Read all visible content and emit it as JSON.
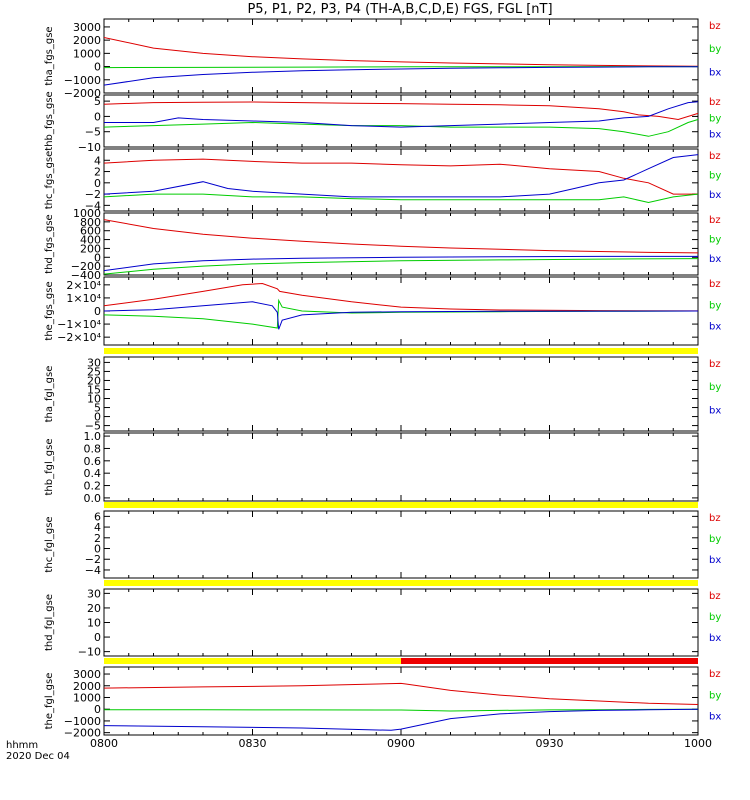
{
  "title": "P5, P1, P2, P3, P4 (TH-A,B,C,D,E) FGS, FGL [nT]",
  "colors": {
    "bz": "#dd0000",
    "by": "#00cc00",
    "bx": "#0000cc",
    "bar_yellow": "#ffff00",
    "bar_red": "#ee0000"
  },
  "footer": {
    "axis_label": "hhmm",
    "date": "2020 Dec 04"
  },
  "chart_data": {
    "type": "line",
    "x_ticks": [
      "0800",
      "0830",
      "0900",
      "0930",
      "1000"
    ],
    "x_range": [
      "08:00",
      "10:00"
    ],
    "panels": [
      {
        "id": "tha_fgs_gse",
        "ylabel": "tha_fgs_gse",
        "ylim": [
          -2000,
          3600
        ],
        "yticks": [
          {
            "v": 3000,
            "t": "3000"
          },
          {
            "v": 2000,
            "t": "2000"
          },
          {
            "v": 1000,
            "t": "1000"
          },
          {
            "v": 0,
            "t": "0"
          },
          {
            "v": -1000,
            "t": "−1000"
          },
          {
            "v": -2000,
            "t": "−2000"
          }
        ],
        "legend": [
          "bz",
          "by",
          "bx"
        ],
        "series": [
          {
            "name": "bz",
            "x": [
              0,
              10,
              20,
              30,
              40,
              50,
              60,
              70,
              80,
              90,
              100,
              110,
              120
            ],
            "y": [
              2200,
              1400,
              1000,
              750,
              580,
              450,
              350,
              270,
              200,
              140,
              90,
              50,
              30
            ]
          },
          {
            "name": "by",
            "x": [
              0,
              20,
              40,
              60,
              80,
              100,
              120
            ],
            "y": [
              -80,
              -60,
              -40,
              -20,
              -10,
              0,
              0
            ]
          },
          {
            "name": "bx",
            "x": [
              0,
              10,
              20,
              30,
              40,
              50,
              60,
              70,
              80,
              90,
              100,
              110,
              120
            ],
            "y": [
              -1400,
              -850,
              -600,
              -430,
              -320,
              -240,
              -180,
              -130,
              -90,
              -60,
              -40,
              -20,
              -10
            ]
          }
        ]
      },
      {
        "id": "thb_fgs_gse",
        "ylabel": "thb_fgs_gse",
        "ylim": [
          -10,
          7
        ],
        "yticks": [
          {
            "v": 5,
            "t": "5"
          },
          {
            "v": 0,
            "t": "0"
          },
          {
            "v": -5,
            "t": "−5"
          },
          {
            "v": -10,
            "t": "−10"
          }
        ],
        "legend": [
          "bz",
          "by",
          "bx"
        ],
        "series": [
          {
            "name": "bz",
            "x": [
              0,
              10,
              20,
              30,
              40,
              50,
              60,
              70,
              80,
              90,
              100,
              105,
              108,
              112,
              116,
              120
            ],
            "y": [
              4.0,
              4.5,
              4.6,
              4.7,
              4.5,
              4.3,
              4.2,
              4.0,
              3.8,
              3.5,
              2.5,
              1.5,
              0.5,
              0.0,
              -1.0,
              1.0
            ]
          },
          {
            "name": "by",
            "x": [
              0,
              10,
              20,
              30,
              40,
              50,
              60,
              70,
              80,
              90,
              100,
              105,
              110,
              114,
              118,
              120
            ],
            "y": [
              -3.5,
              -3.0,
              -2.5,
              -2.0,
              -2.5,
              -3.0,
              -3.0,
              -3.5,
              -3.5,
              -3.5,
              -4.0,
              -5.0,
              -6.5,
              -5.0,
              -2.0,
              -1.0
            ]
          },
          {
            "name": "bx",
            "x": [
              0,
              10,
              15,
              20,
              30,
              40,
              50,
              60,
              70,
              80,
              90,
              100,
              105,
              110,
              114,
              118,
              120
            ],
            "y": [
              -2.0,
              -2.0,
              -0.5,
              -1.0,
              -1.5,
              -2.0,
              -3.0,
              -3.5,
              -3.0,
              -2.5,
              -2.0,
              -1.5,
              -0.5,
              0.0,
              2.5,
              4.5,
              4.8
            ]
          }
        ]
      },
      {
        "id": "thc_fgs_gse",
        "ylabel": "thc_fgs_gse",
        "ylim": [
          -5,
          6
        ],
        "yticks": [
          {
            "v": 4,
            "t": "4"
          },
          {
            "v": 2,
            "t": "2"
          },
          {
            "v": 0,
            "t": "0"
          },
          {
            "v": -2,
            "t": "−2"
          },
          {
            "v": -4,
            "t": "−4"
          }
        ],
        "legend": [
          "bz",
          "by",
          "bx"
        ],
        "series": [
          {
            "name": "bz",
            "x": [
              0,
              10,
              20,
              30,
              40,
              50,
              60,
              70,
              80,
              90,
              100,
              105,
              110,
              115,
              120
            ],
            "y": [
              3.5,
              4.0,
              4.2,
              3.8,
              3.5,
              3.5,
              3.2,
              3.0,
              3.3,
              2.5,
              2.0,
              0.8,
              0.0,
              -2.0,
              -2.0
            ]
          },
          {
            "name": "by",
            "x": [
              0,
              10,
              20,
              30,
              40,
              50,
              60,
              70,
              80,
              90,
              100,
              105,
              110,
              115,
              120
            ],
            "y": [
              -2.5,
              -2.0,
              -2.0,
              -2.5,
              -2.5,
              -2.8,
              -3.0,
              -3.0,
              -3.0,
              -3.0,
              -3.0,
              -2.5,
              -3.5,
              -2.5,
              -2.0
            ]
          },
          {
            "name": "bx",
            "x": [
              0,
              10,
              20,
              25,
              30,
              40,
              50,
              60,
              70,
              80,
              90,
              95,
              100,
              105,
              110,
              115,
              120
            ],
            "y": [
              -2.0,
              -1.5,
              0.2,
              -1.0,
              -1.5,
              -2.0,
              -2.5,
              -2.5,
              -2.5,
              -2.5,
              -2.0,
              -1.0,
              0.0,
              0.5,
              2.5,
              4.5,
              5.0
            ]
          }
        ]
      },
      {
        "id": "thd_fgs_gse",
        "ylabel": "thd_fgs_gse",
        "ylim": [
          -400,
          1000
        ],
        "yticks": [
          {
            "v": 1000,
            "t": "1000"
          },
          {
            "v": 800,
            "t": "800"
          },
          {
            "v": 600,
            "t": "600"
          },
          {
            "v": 400,
            "t": "400"
          },
          {
            "v": 200,
            "t": "200"
          },
          {
            "v": 0,
            "t": "0"
          },
          {
            "v": -200,
            "t": "−200"
          },
          {
            "v": -400,
            "t": "−400"
          }
        ],
        "legend": [
          "bz",
          "by",
          "bx"
        ],
        "series": [
          {
            "name": "bz",
            "x": [
              0,
              10,
              20,
              30,
              40,
              50,
              60,
              70,
              80,
              90,
              100,
              110,
              120
            ],
            "y": [
              850,
              650,
              520,
              430,
              360,
              300,
              250,
              210,
              180,
              150,
              130,
              110,
              100
            ]
          },
          {
            "name": "by",
            "x": [
              0,
              10,
              20,
              30,
              40,
              60,
              80,
              100,
              120
            ],
            "y": [
              -380,
              -270,
              -200,
              -150,
              -120,
              -80,
              -60,
              -40,
              -30
            ]
          },
          {
            "name": "bx",
            "x": [
              0,
              10,
              20,
              30,
              40,
              60,
              80,
              100,
              120
            ],
            "y": [
              -300,
              -150,
              -80,
              -40,
              -20,
              0,
              10,
              20,
              20
            ]
          }
        ]
      },
      {
        "id": "the_fgs_gse",
        "ylabel": "the_fgs_gse",
        "ylim": [
          -26000,
          26000
        ],
        "yticks": [
          {
            "v": 20000,
            "t": "2×10⁴"
          },
          {
            "v": 10000,
            "t": "1×10⁴"
          },
          {
            "v": 0,
            "t": "0"
          },
          {
            "v": -10000,
            "t": "−1×10⁴"
          },
          {
            "v": -20000,
            "t": "−2×10⁴"
          }
        ],
        "legend": [
          "bz",
          "by",
          "bx"
        ],
        "series": [
          {
            "name": "bz",
            "x": [
              0,
              10,
              20,
              28,
              32,
              35,
              35.5,
              40,
              50,
              60,
              70,
              80,
              100,
              120
            ],
            "y": [
              4000,
              9000,
              15000,
              20000,
              21000,
              17000,
              15000,
              12000,
              7000,
              3000,
              1500,
              800,
              300,
              100
            ]
          },
          {
            "name": "by",
            "x": [
              0,
              10,
              20,
              30,
              35,
              35.3,
              36,
              40,
              50,
              60,
              80,
              100,
              120
            ],
            "y": [
              -3000,
              -4000,
              -6000,
              -10000,
              -13000,
              8000,
              3000,
              0,
              -1500,
              -1000,
              -500,
              -200,
              0
            ]
          },
          {
            "name": "bx",
            "x": [
              0,
              10,
              20,
              30,
              34,
              35,
              35.3,
              36,
              40,
              50,
              60,
              80,
              120
            ],
            "y": [
              0,
              1000,
              4000,
              7000,
              4000,
              -1000,
              -14000,
              -7000,
              -3000,
              -1000,
              -500,
              -200,
              0
            ]
          }
        ]
      },
      {
        "id": "tha_fgl_gse",
        "ylabel": "tha_fgl_gse",
        "ylim": [
          -8,
          33
        ],
        "yticks": [
          {
            "v": 30,
            "t": "30"
          },
          {
            "v": 25,
            "t": "25"
          },
          {
            "v": 20,
            "t": "20"
          },
          {
            "v": 15,
            "t": "15"
          },
          {
            "v": 10,
            "t": "10"
          },
          {
            "v": 5,
            "t": "5"
          },
          {
            "v": 0,
            "t": "0"
          },
          {
            "v": -5,
            "t": "−5"
          }
        ],
        "legend": [
          "bz",
          "by",
          "bx"
        ],
        "series": [],
        "top_bar": [
          {
            "color": "yellow",
            "x0": 0,
            "x1": 120
          }
        ]
      },
      {
        "id": "thb_fgl_gse",
        "ylabel": "thb_fgl_gse",
        "ylim": [
          -0.05,
          1.05
        ],
        "yticks": [
          {
            "v": 1.0,
            "t": "1.0"
          },
          {
            "v": 0.8,
            "t": "0.8"
          },
          {
            "v": 0.6,
            "t": "0.6"
          },
          {
            "v": 0.4,
            "t": "0.4"
          },
          {
            "v": 0.2,
            "t": "0.2"
          },
          {
            "v": 0.0,
            "t": "0.0"
          }
        ],
        "legend": [],
        "series": []
      },
      {
        "id": "thc_fgl_gse",
        "ylabel": "thc_fgl_gse",
        "ylim": [
          -5.5,
          7
        ],
        "yticks": [
          {
            "v": 6,
            "t": "6"
          },
          {
            "v": 4,
            "t": "4"
          },
          {
            "v": 2,
            "t": "2"
          },
          {
            "v": 0,
            "t": "0"
          },
          {
            "v": -2,
            "t": "−2"
          },
          {
            "v": -4,
            "t": "−4"
          }
        ],
        "legend": [
          "bz",
          "by",
          "bx"
        ],
        "series": [],
        "top_bar": [
          {
            "color": "yellow",
            "x0": 0,
            "x1": 120
          }
        ]
      },
      {
        "id": "thd_fgl_gse",
        "ylabel": "thd_fgl_gse",
        "ylim": [
          -13,
          33
        ],
        "yticks": [
          {
            "v": 30,
            "t": "30"
          },
          {
            "v": 20,
            "t": "20"
          },
          {
            "v": 10,
            "t": "10"
          },
          {
            "v": 0,
            "t": "0"
          },
          {
            "v": -10,
            "t": "−10"
          }
        ],
        "legend": [
          "bz",
          "by",
          "bx"
        ],
        "series": [],
        "top_bar": [
          {
            "color": "yellow",
            "x0": 0,
            "x1": 120
          }
        ]
      },
      {
        "id": "the_fgl_gse",
        "ylabel": "the_fgl_gse",
        "ylim": [
          -2200,
          3600
        ],
        "yticks": [
          {
            "v": 3000,
            "t": "3000"
          },
          {
            "v": 2000,
            "t": "2000"
          },
          {
            "v": 1000,
            "t": "1000"
          },
          {
            "v": 0,
            "t": "0"
          },
          {
            "v": -1000,
            "t": "−1000"
          },
          {
            "v": -2000,
            "t": "−2000"
          }
        ],
        "legend": [
          "bz",
          "by",
          "bx"
        ],
        "series": [
          {
            "name": "bz",
            "x": [
              0,
              20,
              40,
              60,
              61,
              70,
              80,
              90,
              100,
              110,
              120
            ],
            "y": [
              1800,
              1900,
              2000,
              2200,
              2150,
              1600,
              1200,
              900,
              700,
              500,
              400
            ]
          },
          {
            "name": "by",
            "x": [
              0,
              20,
              40,
              60,
              70,
              80,
              90,
              100,
              110,
              120
            ],
            "y": [
              -50,
              -50,
              -60,
              -70,
              -150,
              -100,
              -60,
              -40,
              -20,
              0
            ]
          },
          {
            "name": "bx",
            "x": [
              0,
              20,
              40,
              58,
              60,
              70,
              80,
              90,
              100,
              110,
              120
            ],
            "y": [
              -1400,
              -1500,
              -1600,
              -1800,
              -1700,
              -800,
              -400,
              -200,
              -100,
              -50,
              0
            ]
          }
        ],
        "top_bar": [
          {
            "color": "yellow",
            "x0": 0,
            "x1": 60
          },
          {
            "color": "red",
            "x0": 60,
            "x1": 120
          }
        ]
      }
    ]
  }
}
